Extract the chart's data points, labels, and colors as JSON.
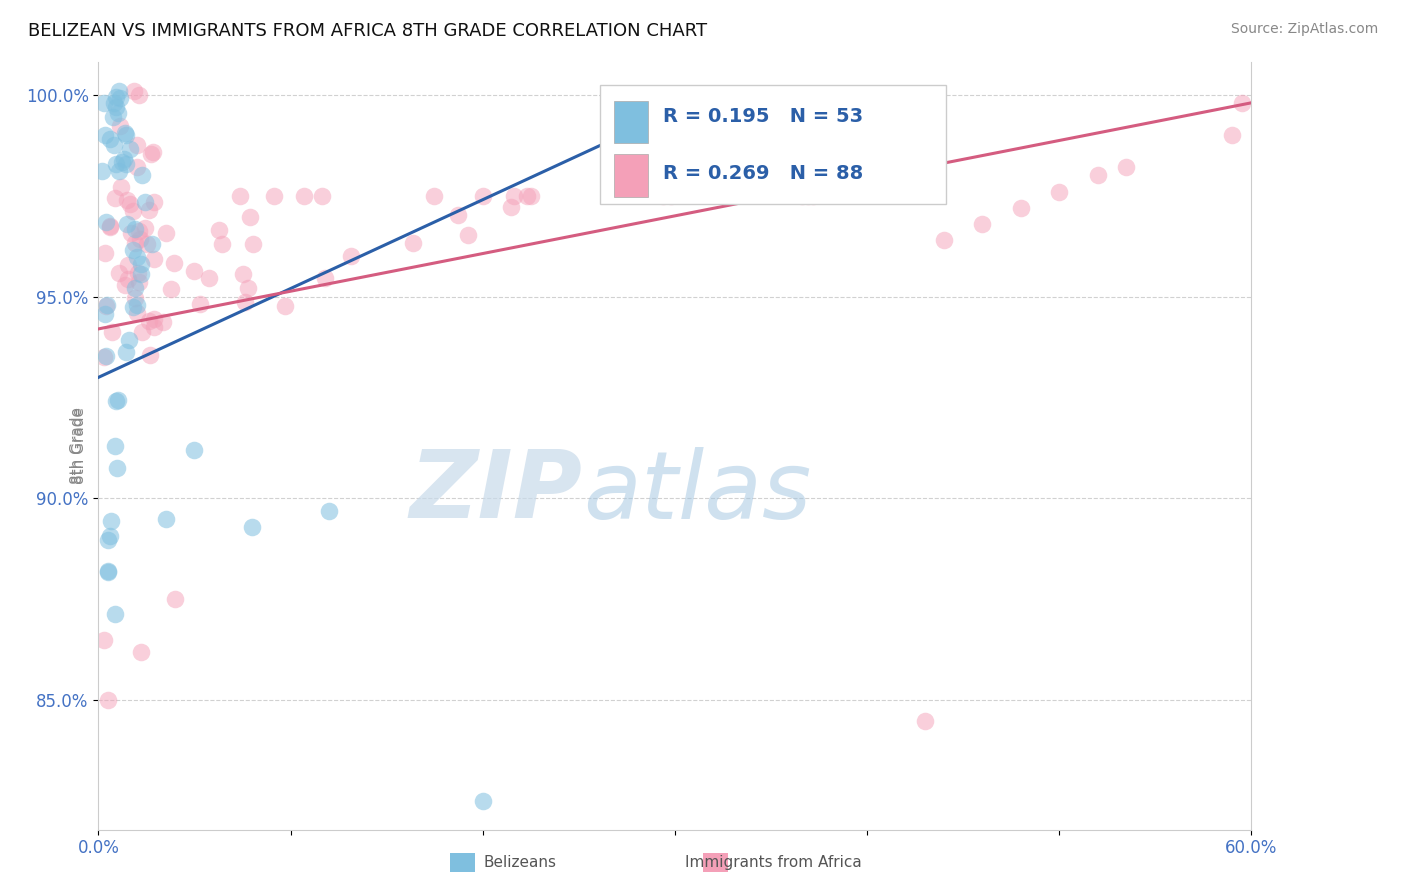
{
  "title": "BELIZEAN VS IMMIGRANTS FROM AFRICA 8TH GRADE CORRELATION CHART",
  "source": "Source: ZipAtlas.com",
  "ylabel": "8th Grade",
  "xlim": [
    0.0,
    0.6
  ],
  "ylim": [
    0.818,
    1.008
  ],
  "xticks": [
    0.0,
    0.1,
    0.2,
    0.3,
    0.4,
    0.5,
    0.6
  ],
  "xticklabels": [
    "0.0%",
    "",
    "",
    "",
    "",
    "",
    "60.0%"
  ],
  "yticks": [
    0.85,
    0.9,
    0.95,
    1.0
  ],
  "yticklabels": [
    "85.0%",
    "90.0%",
    "95.0%",
    "100.0%"
  ],
  "blue_color": "#7fbfdf",
  "pink_color": "#f4a0b8",
  "blue_line_color": "#2b5fa8",
  "pink_line_color": "#d45c80",
  "watermark_zip": "ZIP",
  "watermark_atlas": "atlas",
  "legend_R_blue": "R = 0.195",
  "legend_N_blue": "N = 53",
  "legend_R_pink": "R = 0.269",
  "legend_N_pink": "N = 88",
  "legend_text_color": "#2b5fa8",
  "tick_color": "#4472c4",
  "title_fontsize": 13,
  "source_fontsize": 10
}
